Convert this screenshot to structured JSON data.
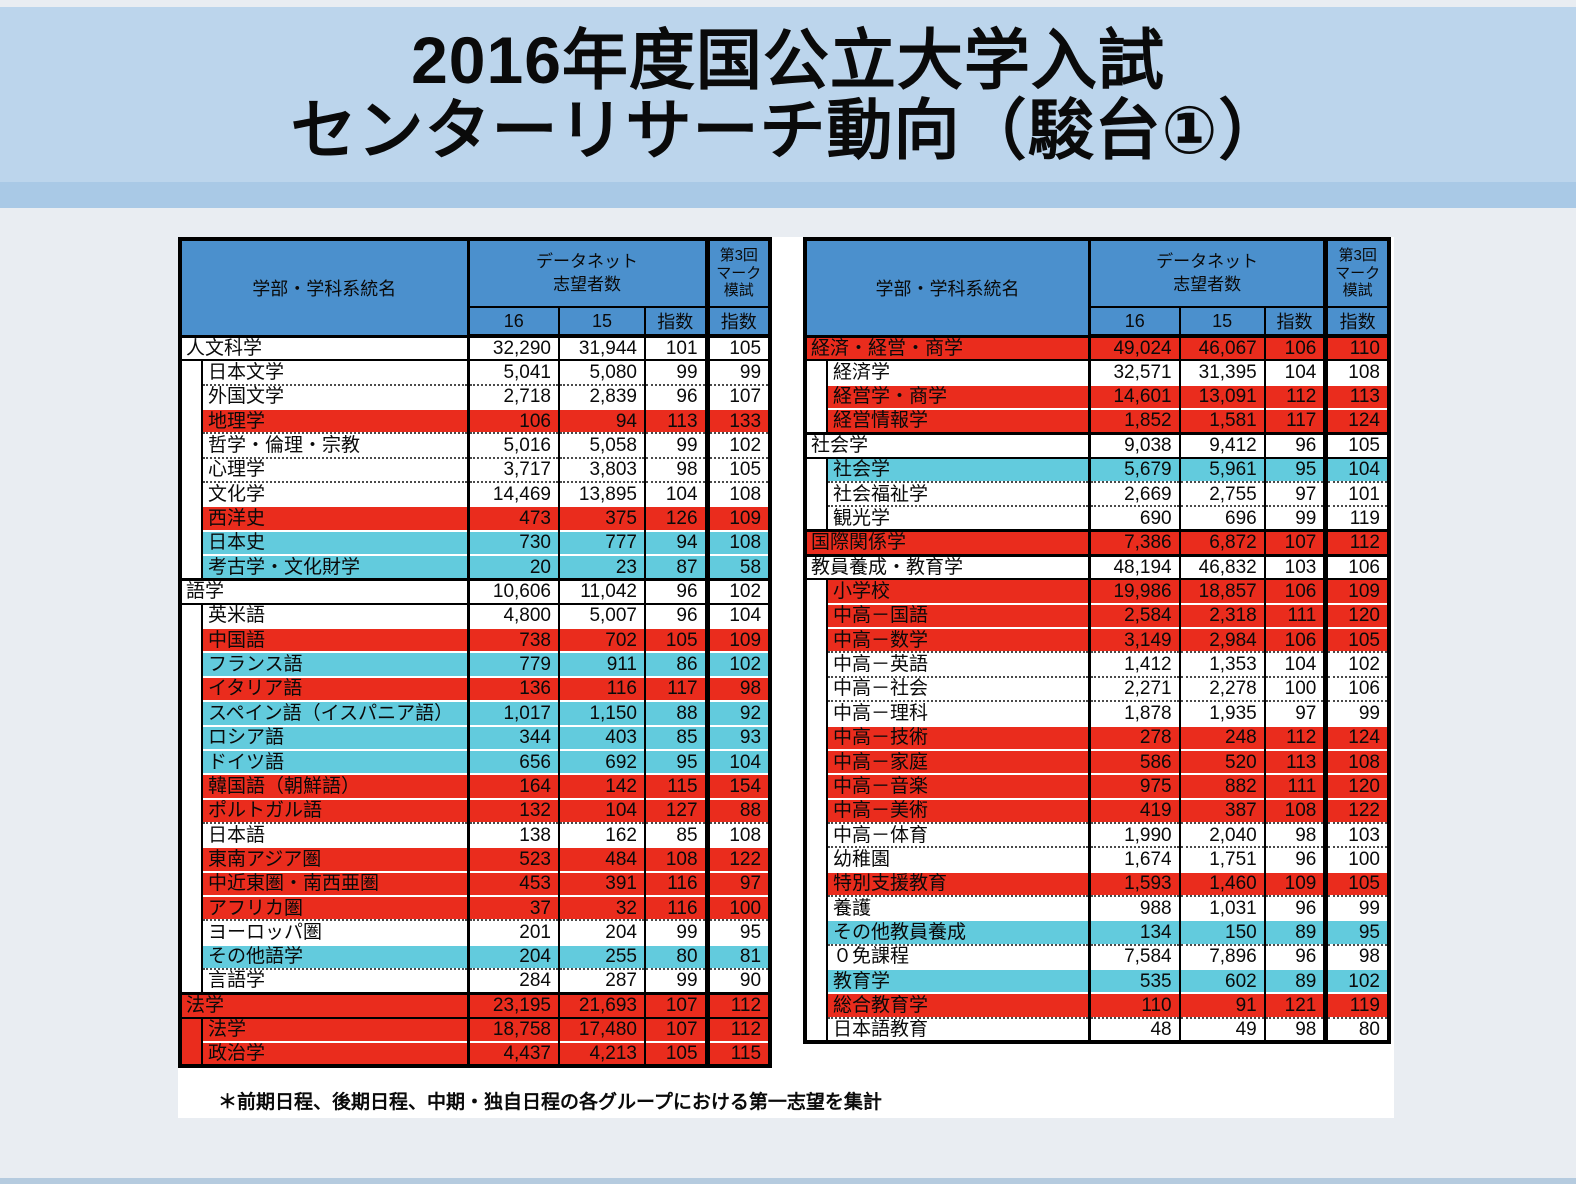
{
  "title": {
    "line1": "2016年度国公立大学入試",
    "line2": "センターリサーチ動向（駿台①）"
  },
  "header": {
    "name_col": "学部・学科系統名",
    "datanet_line1": "データネット",
    "datanet_line2": "志望者数",
    "mark_line1": "第3回",
    "mark_line2": "マーク",
    "mark_line3": "模試",
    "col_16": "16",
    "col_15": "15",
    "col_index": "指数",
    "col_mark_index": "指数"
  },
  "footnote": "＊前期日程、後期日程、中期・独自日程の各グループにおける第一志望を集計",
  "colors": {
    "row_red": "#ea2c1d",
    "row_cyan": "#62cbdd",
    "header_blue": "#4b90cd",
    "title_band": "#bcd5ec",
    "title_strip": "#a9c9e6",
    "page_background": "#e9edf2"
  },
  "left_table": {
    "rows": [
      {
        "level": 0,
        "name": "人文科学",
        "v16": "32,290",
        "v15": "31,944",
        "idx": "101",
        "mark": "105",
        "color": "w"
      },
      {
        "level": 1,
        "name": "日本文学",
        "v16": "5,041",
        "v15": "5,080",
        "idx": "99",
        "mark": "99",
        "color": "w"
      },
      {
        "level": 1,
        "name": "外国文学",
        "v16": "2,718",
        "v15": "2,839",
        "idx": "96",
        "mark": "107",
        "color": "w"
      },
      {
        "level": 1,
        "name": "地理学",
        "v16": "106",
        "v15": "94",
        "idx": "113",
        "mark": "133",
        "color": "r"
      },
      {
        "level": 1,
        "name": "哲学・倫理・宗教",
        "v16": "5,016",
        "v15": "5,058",
        "idx": "99",
        "mark": "102",
        "color": "w"
      },
      {
        "level": 1,
        "name": "心理学",
        "v16": "3,717",
        "v15": "3,803",
        "idx": "98",
        "mark": "105",
        "color": "w"
      },
      {
        "level": 1,
        "name": "文化学",
        "v16": "14,469",
        "v15": "13,895",
        "idx": "104",
        "mark": "108",
        "color": "w"
      },
      {
        "level": 1,
        "name": "西洋史",
        "v16": "473",
        "v15": "375",
        "idx": "126",
        "mark": "109",
        "color": "r"
      },
      {
        "level": 1,
        "name": "日本史",
        "v16": "730",
        "v15": "777",
        "idx": "94",
        "mark": "108",
        "color": "c"
      },
      {
        "level": 1,
        "name": "考古学・文化財学",
        "v16": "20",
        "v15": "23",
        "idx": "87",
        "mark": "58",
        "color": "c"
      },
      {
        "level": 0,
        "name": "語学",
        "v16": "10,606",
        "v15": "11,042",
        "idx": "96",
        "mark": "102",
        "color": "w"
      },
      {
        "level": 1,
        "name": "英米語",
        "v16": "4,800",
        "v15": "5,007",
        "idx": "96",
        "mark": "104",
        "color": "w"
      },
      {
        "level": 1,
        "name": "中国語",
        "v16": "738",
        "v15": "702",
        "idx": "105",
        "mark": "109",
        "color": "r"
      },
      {
        "level": 1,
        "name": "フランス語",
        "v16": "779",
        "v15": "911",
        "idx": "86",
        "mark": "102",
        "color": "c"
      },
      {
        "level": 1,
        "name": "イタリア語",
        "v16": "136",
        "v15": "116",
        "idx": "117",
        "mark": "98",
        "color": "r"
      },
      {
        "level": 1,
        "name": "スペイン語（イスパニア語）",
        "v16": "1,017",
        "v15": "1,150",
        "idx": "88",
        "mark": "92",
        "color": "c"
      },
      {
        "level": 1,
        "name": "ロシア語",
        "v16": "344",
        "v15": "403",
        "idx": "85",
        "mark": "93",
        "color": "c"
      },
      {
        "level": 1,
        "name": "ドイツ語",
        "v16": "656",
        "v15": "692",
        "idx": "95",
        "mark": "104",
        "color": "c"
      },
      {
        "level": 1,
        "name": "韓国語（朝鮮語）",
        "v16": "164",
        "v15": "142",
        "idx": "115",
        "mark": "154",
        "color": "r"
      },
      {
        "level": 1,
        "name": "ポルトガル語",
        "v16": "132",
        "v15": "104",
        "idx": "127",
        "mark": "88",
        "color": "r"
      },
      {
        "level": 1,
        "name": "日本語",
        "v16": "138",
        "v15": "162",
        "idx": "85",
        "mark": "108",
        "color": "w"
      },
      {
        "level": 1,
        "name": "東南アジア圏",
        "v16": "523",
        "v15": "484",
        "idx": "108",
        "mark": "122",
        "color": "r"
      },
      {
        "level": 1,
        "name": "中近東圏・南西亜圏",
        "v16": "453",
        "v15": "391",
        "idx": "116",
        "mark": "97",
        "color": "r"
      },
      {
        "level": 1,
        "name": "アフリカ圏",
        "v16": "37",
        "v15": "32",
        "idx": "116",
        "mark": "100",
        "color": "r"
      },
      {
        "level": 1,
        "name": "ヨーロッパ圏",
        "v16": "201",
        "v15": "204",
        "idx": "99",
        "mark": "95",
        "color": "w"
      },
      {
        "level": 1,
        "name": "その他語学",
        "v16": "204",
        "v15": "255",
        "idx": "80",
        "mark": "81",
        "color": "c"
      },
      {
        "level": 1,
        "name": "言語学",
        "v16": "284",
        "v15": "287",
        "idx": "99",
        "mark": "90",
        "color": "w"
      },
      {
        "level": 0,
        "name": "法学",
        "v16": "23,195",
        "v15": "21,693",
        "idx": "107",
        "mark": "112",
        "color": "r"
      },
      {
        "level": 1,
        "name": "法学",
        "v16": "18,758",
        "v15": "17,480",
        "idx": "107",
        "mark": "112",
        "color": "r",
        "sp": "r"
      },
      {
        "level": 1,
        "name": "政治学",
        "v16": "4,437",
        "v15": "4,213",
        "idx": "105",
        "mark": "115",
        "color": "r",
        "sp": "r"
      }
    ]
  },
  "right_table": {
    "rows": [
      {
        "level": 0,
        "name": "経済・経営・商学",
        "v16": "49,024",
        "v15": "46,067",
        "idx": "106",
        "mark": "110",
        "color": "r"
      },
      {
        "level": 1,
        "name": "経済学",
        "v16": "32,571",
        "v15": "31,395",
        "idx": "104",
        "mark": "108",
        "color": "w"
      },
      {
        "level": 1,
        "name": "経営学・商学",
        "v16": "14,601",
        "v15": "13,091",
        "idx": "112",
        "mark": "113",
        "color": "r"
      },
      {
        "level": 1,
        "name": "経営情報学",
        "v16": "1,852",
        "v15": "1,581",
        "idx": "117",
        "mark": "124",
        "color": "r"
      },
      {
        "level": 0,
        "name": "社会学",
        "v16": "9,038",
        "v15": "9,412",
        "idx": "96",
        "mark": "105",
        "color": "w"
      },
      {
        "level": 1,
        "name": "社会学",
        "v16": "5,679",
        "v15": "5,961",
        "idx": "95",
        "mark": "104",
        "color": "c"
      },
      {
        "level": 1,
        "name": "社会福祉学",
        "v16": "2,669",
        "v15": "2,755",
        "idx": "97",
        "mark": "101",
        "color": "w"
      },
      {
        "level": 1,
        "name": "観光学",
        "v16": "690",
        "v15": "696",
        "idx": "99",
        "mark": "119",
        "color": "w"
      },
      {
        "level": 0,
        "name": "国際関係学",
        "v16": "7,386",
        "v15": "6,872",
        "idx": "107",
        "mark": "112",
        "color": "r"
      },
      {
        "level": 0,
        "name": "教員養成・教育学",
        "v16": "48,194",
        "v15": "46,832",
        "idx": "103",
        "mark": "106",
        "color": "w"
      },
      {
        "level": 1,
        "name": "小学校",
        "v16": "19,986",
        "v15": "18,857",
        "idx": "106",
        "mark": "109",
        "color": "r"
      },
      {
        "level": 1,
        "name": "中高－国語",
        "v16": "2,584",
        "v15": "2,318",
        "idx": "111",
        "mark": "120",
        "color": "r"
      },
      {
        "level": 1,
        "name": "中高－数学",
        "v16": "3,149",
        "v15": "2,984",
        "idx": "106",
        "mark": "105",
        "color": "r"
      },
      {
        "level": 1,
        "name": "中高－英語",
        "v16": "1,412",
        "v15": "1,353",
        "idx": "104",
        "mark": "102",
        "color": "w"
      },
      {
        "level": 1,
        "name": "中高－社会",
        "v16": "2,271",
        "v15": "2,278",
        "idx": "100",
        "mark": "106",
        "color": "w"
      },
      {
        "level": 1,
        "name": "中高－理科",
        "v16": "1,878",
        "v15": "1,935",
        "idx": "97",
        "mark": "99",
        "color": "w"
      },
      {
        "level": 1,
        "name": "中高－技術",
        "v16": "278",
        "v15": "248",
        "idx": "112",
        "mark": "124",
        "color": "r"
      },
      {
        "level": 1,
        "name": "中高－家庭",
        "v16": "586",
        "v15": "520",
        "idx": "113",
        "mark": "108",
        "color": "r"
      },
      {
        "level": 1,
        "name": "中高－音楽",
        "v16": "975",
        "v15": "882",
        "idx": "111",
        "mark": "120",
        "color": "r"
      },
      {
        "level": 1,
        "name": "中高－美術",
        "v16": "419",
        "v15": "387",
        "idx": "108",
        "mark": "122",
        "color": "r"
      },
      {
        "level": 1,
        "name": "中高－体育",
        "v16": "1,990",
        "v15": "2,040",
        "idx": "98",
        "mark": "103",
        "color": "w"
      },
      {
        "level": 1,
        "name": "幼稚園",
        "v16": "1,674",
        "v15": "1,751",
        "idx": "96",
        "mark": "100",
        "color": "w"
      },
      {
        "level": 1,
        "name": "特別支援教育",
        "v16": "1,593",
        "v15": "1,460",
        "idx": "109",
        "mark": "105",
        "color": "r"
      },
      {
        "level": 1,
        "name": "養護",
        "v16": "988",
        "v15": "1,031",
        "idx": "96",
        "mark": "99",
        "color": "w"
      },
      {
        "level": 1,
        "name": "その他教員養成",
        "v16": "134",
        "v15": "150",
        "idx": "89",
        "mark": "95",
        "color": "c"
      },
      {
        "level": 1,
        "name": "０免課程",
        "v16": "7,584",
        "v15": "7,896",
        "idx": "96",
        "mark": "98",
        "color": "w"
      },
      {
        "level": 1,
        "name": "教育学",
        "v16": "535",
        "v15": "602",
        "idx": "89",
        "mark": "102",
        "color": "c"
      },
      {
        "level": 1,
        "name": "総合教育学",
        "v16": "110",
        "v15": "91",
        "idx": "121",
        "mark": "119",
        "color": "r"
      },
      {
        "level": 1,
        "name": "日本語教育",
        "v16": "48",
        "v15": "49",
        "idx": "98",
        "mark": "80",
        "color": "w"
      }
    ]
  }
}
